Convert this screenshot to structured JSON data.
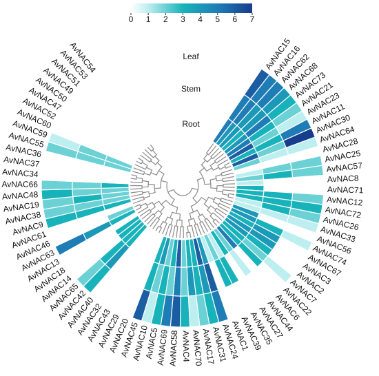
{
  "chart_data": {
    "type": "circular-heatmap",
    "categories": [
      "AvNAC15",
      "AvNAC16",
      "AvNAC62",
      "AvNAC68",
      "AvNAC73",
      "AvNAC21",
      "AvNAC23",
      "AvNAC11",
      "AvNAC30",
      "AvNAC64",
      "AvNAC28",
      "AvNAC25",
      "AvNAC57",
      "AvNAC8",
      "AvNAC71",
      "AvNAC12",
      "AvNAC72",
      "AvNAC26",
      "AvNAC33",
      "AvNAC56",
      "AvNAC74",
      "AvNAC67",
      "AvNAC3",
      "AvNAC2",
      "AvNAC7",
      "AvNAC22",
      "AvNAC6",
      "AvNAC44",
      "AvNAC27",
      "AvNAC35",
      "AvNAC39",
      "AvNAC1",
      "AvNAC24",
      "AvNAC31",
      "AvNAC17",
      "AvNAC70",
      "AvNAC4",
      "AvNAC58",
      "AvNAC69",
      "AvNAC5",
      "AvNAC10",
      "AvNAC45",
      "AvNAC20",
      "AvNAC29",
      "AvNAC43",
      "AvNAC32",
      "AvNAC40",
      "AvNAC42",
      "AvNAC65",
      "AvNAC14",
      "AvNAC18",
      "AvNAC13",
      "AvNAC63",
      "AvNAC46",
      "AvNAC61",
      "AvNAC9",
      "AvNAC38",
      "AvNAC19",
      "AvNAC48",
      "AvNAC66",
      "AvNAC34",
      "AvNAC37",
      "AvNAC36",
      "AvNAC55",
      "AvNAC59",
      "AvNAC60",
      "AvNAC52",
      "AvNAC47",
      "AvNAC50",
      "AvNAC49",
      "AvNAC51",
      "AvNAC53",
      "AvNAC54"
    ],
    "series": [
      {
        "name": "Leaf",
        "values": [
          6,
          5,
          5,
          4,
          3,
          2,
          1,
          5,
          7,
          1,
          0,
          2,
          2,
          0,
          0,
          2,
          3,
          2,
          1,
          0,
          1,
          0,
          0,
          0,
          1,
          0,
          0,
          0,
          0,
          0,
          0,
          0,
          5,
          3,
          2,
          1,
          3,
          6,
          5,
          3,
          1,
          6,
          0,
          0,
          0,
          0,
          0,
          3,
          2,
          0,
          0,
          0,
          5,
          0,
          0,
          3,
          2,
          2,
          3,
          2,
          0,
          0,
          0,
          2,
          1,
          0,
          0,
          0,
          0,
          0,
          0,
          0,
          0
        ]
      },
      {
        "name": "Stem",
        "values": [
          5,
          5,
          4,
          4,
          5,
          3,
          2,
          3,
          2,
          1,
          0,
          2,
          3,
          0,
          0,
          3,
          3,
          3,
          1,
          0,
          3,
          4,
          4,
          3,
          2,
          3,
          0,
          1,
          0,
          3,
          3,
          0,
          6,
          4,
          3,
          4,
          2,
          5,
          2,
          3,
          2,
          3,
          0,
          0,
          0,
          0,
          0,
          4,
          3,
          0,
          0,
          0,
          4,
          0,
          0,
          3,
          2,
          3,
          2,
          2,
          0,
          0,
          0,
          2,
          2,
          0,
          0,
          0,
          0,
          0,
          0,
          0,
          0
        ]
      },
      {
        "name": "Root",
        "values": [
          5,
          4,
          4,
          3,
          4,
          5,
          6,
          3,
          6,
          2,
          0,
          1,
          2,
          1,
          3,
          3,
          3,
          1,
          1,
          4,
          4,
          3,
          4,
          4,
          3,
          3,
          5,
          2,
          3,
          1,
          2,
          1,
          4,
          6,
          3,
          3,
          2,
          6,
          3,
          2,
          4,
          3,
          0,
          0,
          0,
          0,
          0,
          3,
          3,
          3,
          3,
          0,
          3,
          2,
          0,
          3,
          2,
          2,
          2,
          3,
          0,
          0,
          0,
          2,
          2,
          0,
          0,
          0,
          0,
          0,
          0,
          0,
          0
        ]
      }
    ],
    "colorbar": {
      "lim": [
        0,
        7
      ],
      "ticks": [
        0,
        1,
        2,
        3,
        4,
        5,
        6,
        7
      ],
      "colors": [
        [
          0,
          "#ffffff"
        ],
        [
          1,
          "#bdeef0"
        ],
        [
          3,
          "#18b3ba"
        ],
        [
          5,
          "#1f7db6"
        ],
        [
          7,
          "#173d8d"
        ]
      ]
    }
  }
}
